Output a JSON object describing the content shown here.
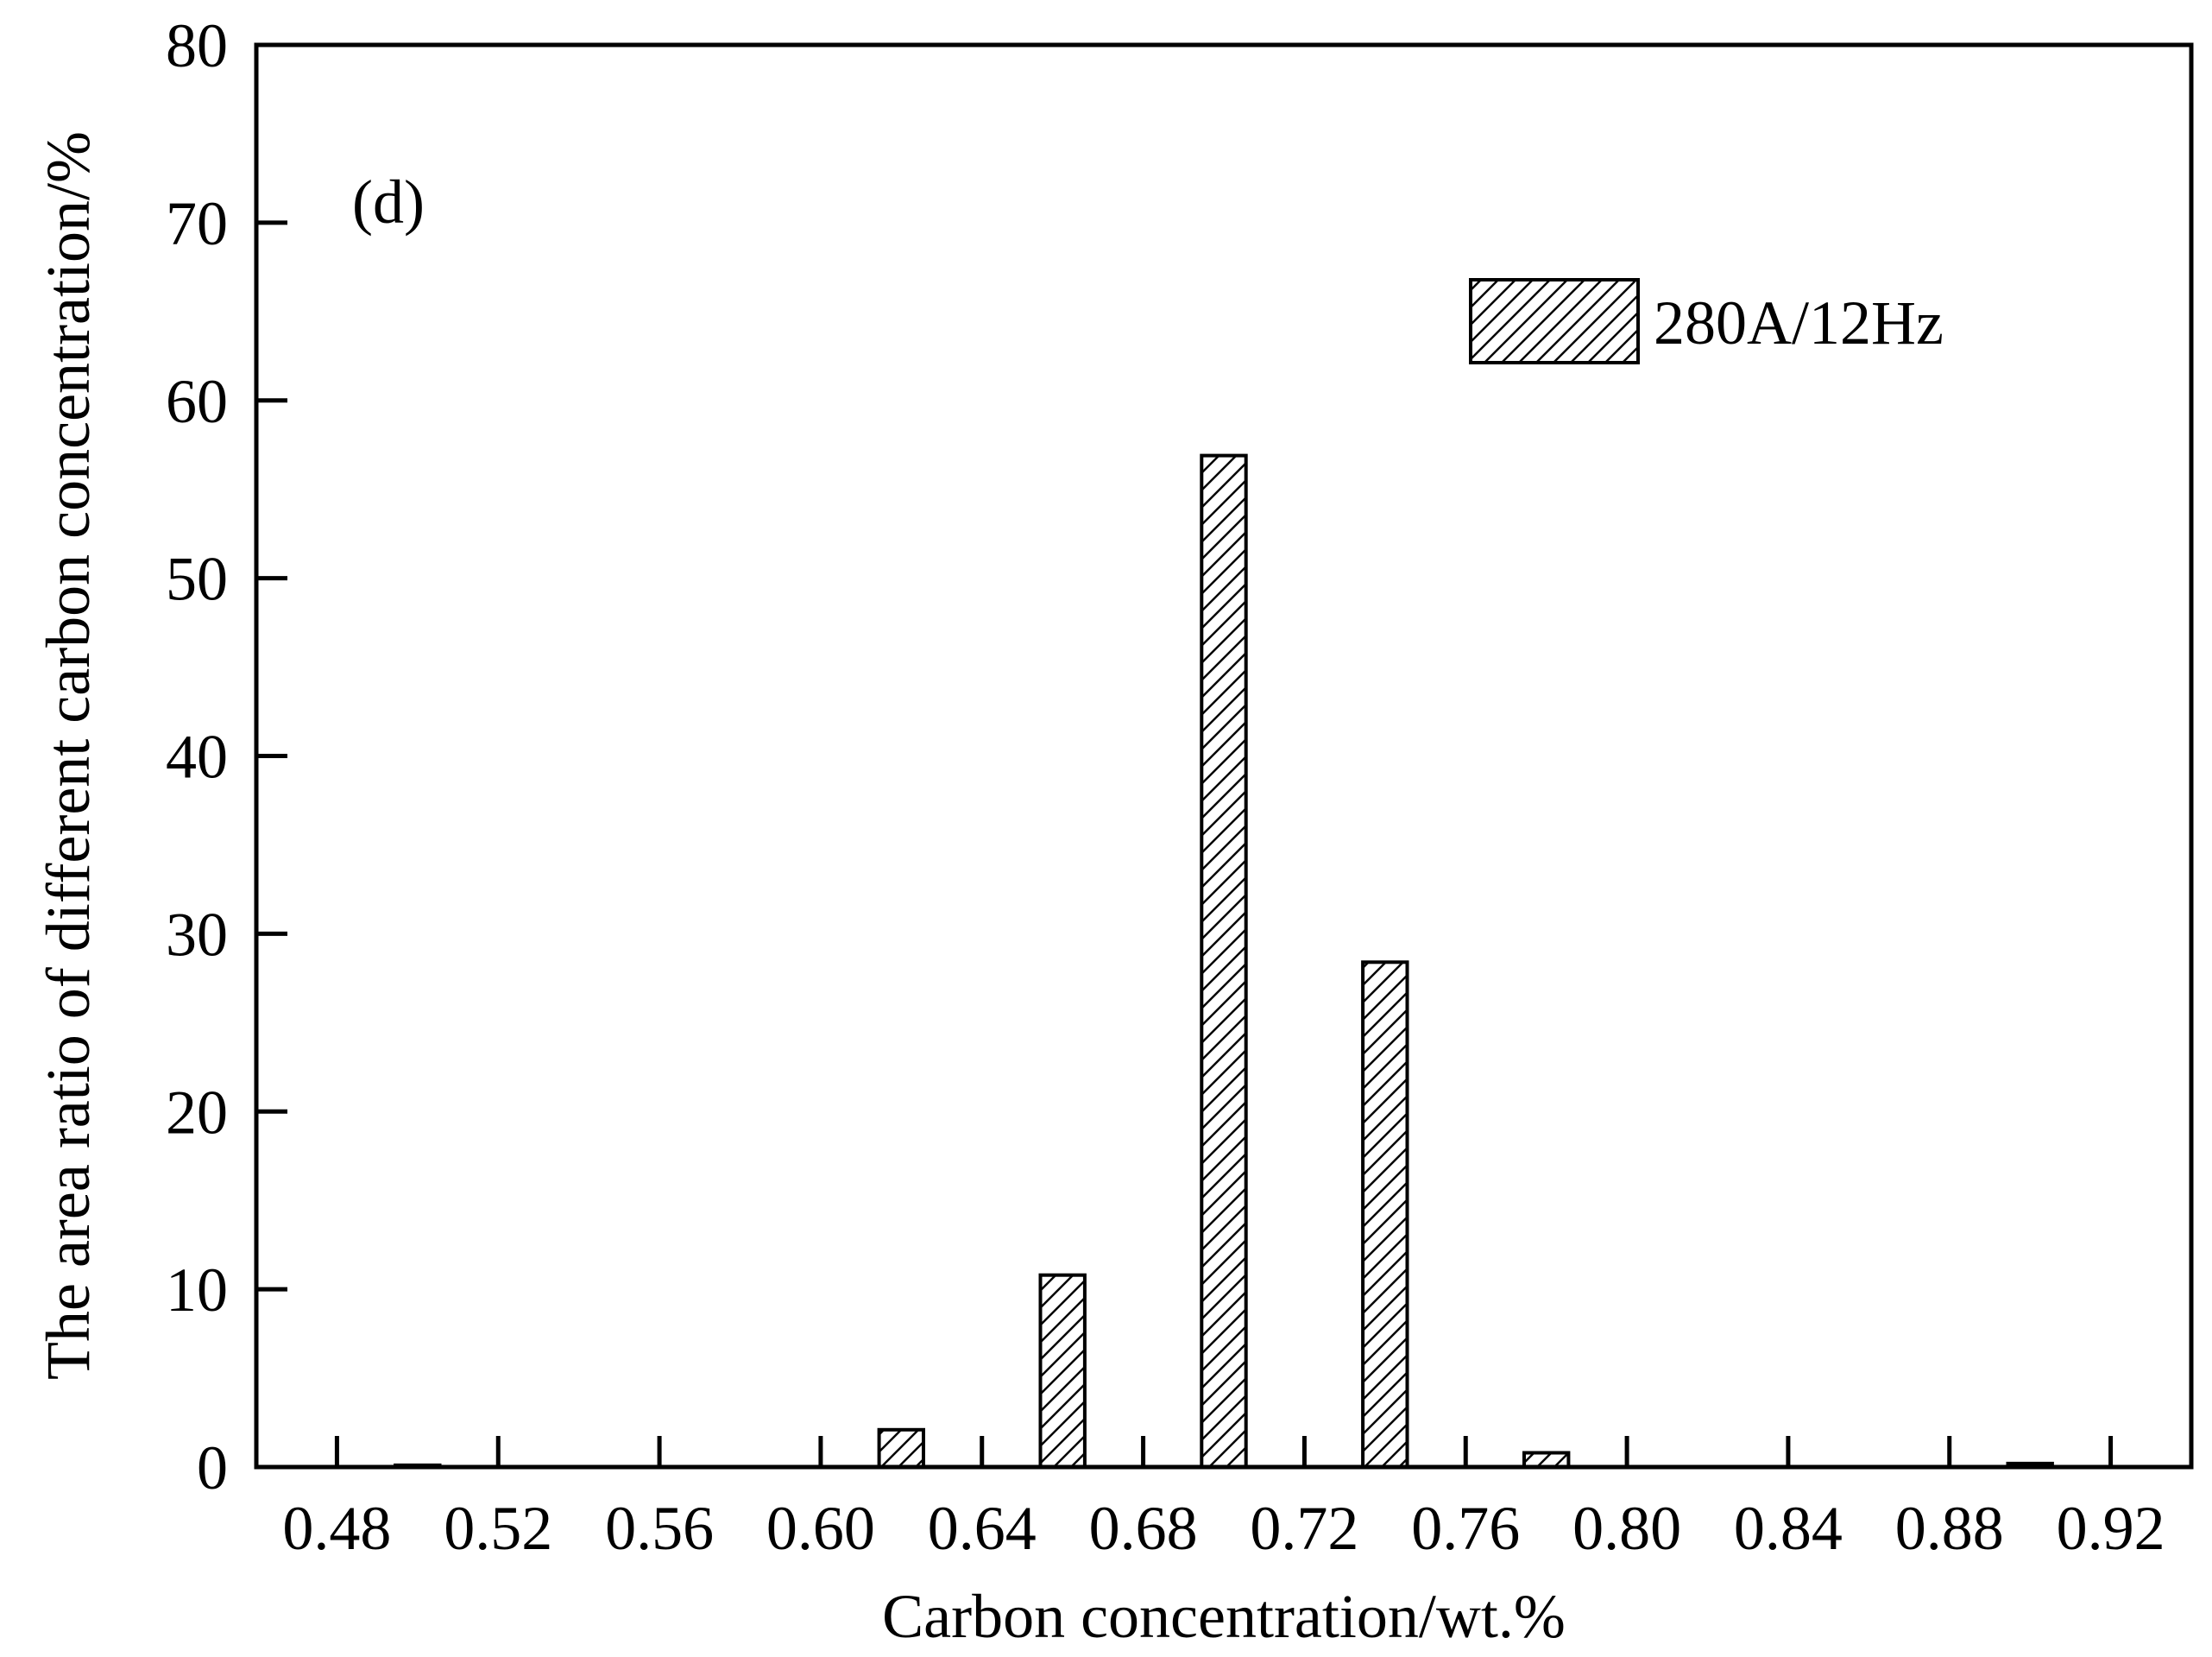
{
  "chart_data": {
    "type": "bar",
    "annotation": "(d)",
    "xlabel": "Carbon concentration/wt.%",
    "ylabel": "The area ratio of different carbon concentration/%",
    "xlim": [
      0.46,
      0.94
    ],
    "ylim": [
      0,
      80
    ],
    "x_ticks": [
      0.48,
      0.52,
      0.56,
      0.6,
      0.64,
      0.68,
      0.72,
      0.76,
      0.8,
      0.84,
      0.88,
      0.92
    ],
    "x_tick_labels": [
      "0.48",
      "0.52",
      "0.56",
      "0.60",
      "0.64",
      "0.68",
      "0.72",
      "0.76",
      "0.80",
      "0.84",
      "0.88",
      "0.92"
    ],
    "y_ticks": [
      0,
      10,
      20,
      30,
      40,
      50,
      60,
      70,
      80
    ],
    "y_tick_labels": [
      "0",
      "10",
      "20",
      "30",
      "40",
      "50",
      "60",
      "70",
      "80"
    ],
    "grid": false,
    "legend_position": "top-right",
    "bar_width": 0.011,
    "series": [
      {
        "name": "280A/12Hz",
        "pattern": "diagonal-hatch",
        "x": [
          0.5,
          0.62,
          0.66,
          0.7,
          0.74,
          0.78,
          0.9
        ],
        "values": [
          0.1,
          2.1,
          10.8,
          56.9,
          28.4,
          0.8,
          0.2
        ]
      }
    ]
  }
}
